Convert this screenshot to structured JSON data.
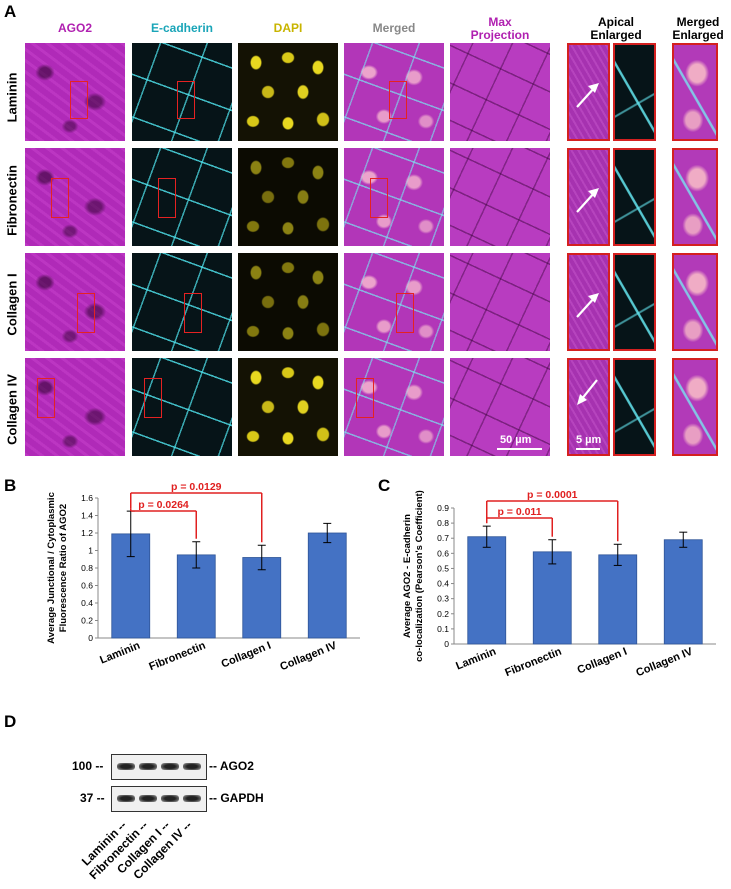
{
  "panels": {
    "A": "A",
    "B": "B",
    "C": "C",
    "D": "D"
  },
  "panel_a": {
    "columns": [
      {
        "label": "AGO2",
        "color": "#b020b0"
      },
      {
        "label": "E-cadherin",
        "color": "#1aa5b8"
      },
      {
        "label": "DAPI",
        "color": "#c8b400"
      },
      {
        "label": "Merged",
        "color": "#888888"
      },
      {
        "label": "Max Projection",
        "line1": "Max",
        "line2": "Projection",
        "color": "#b020b0"
      },
      {
        "label": "Apical Enlarged",
        "line1": "Apical",
        "line2": "Enlarged",
        "color": "#000000"
      },
      {
        "label": "Merged Enlarged",
        "line1": "Merged",
        "line2": "Enlarged",
        "color": "#000000"
      }
    ],
    "rows": [
      "Laminin",
      "Fibronectin",
      "Collagen I",
      "Collagen IV"
    ],
    "scale_bar_large": "50 µm",
    "scale_bar_small": "5 µm"
  },
  "chart_data": [
    {
      "type": "bar",
      "panel": "B",
      "categories": [
        "Laminin",
        "Fibronectin",
        "Collagen I",
        "Collagen IV"
      ],
      "values": [
        1.19,
        0.95,
        0.92,
        1.2
      ],
      "errors": [
        0.26,
        0.15,
        0.14,
        0.11
      ],
      "ylabel": "Average Junctional / Cytoplasmic Fluorescence Ratio of AGO2",
      "ylabel_line1": "Average Junctional / Cytoplasmic",
      "ylabel_line2": "Fluorescence Ratio of AGO2",
      "ylim": [
        0,
        1.6
      ],
      "yticks": [
        "0",
        "0.2",
        "0.4",
        "0.6",
        "0.8",
        "1",
        "1.2",
        "1.4",
        "1.6"
      ],
      "bar_color": "#4472c4",
      "annotations": [
        {
          "from": 0,
          "to": 1,
          "text": "p = 0.0264",
          "color": "#e02020"
        },
        {
          "from": 0,
          "to": 2,
          "text": "p = 0.0129",
          "color": "#e02020"
        }
      ]
    },
    {
      "type": "bar",
      "panel": "C",
      "categories": [
        "Laminin",
        "Fibronectin",
        "Collagen I",
        "Collagen IV"
      ],
      "values": [
        0.71,
        0.61,
        0.59,
        0.69
      ],
      "errors": [
        0.07,
        0.08,
        0.07,
        0.05
      ],
      "ylabel": "Average AGO2 - E-cadherin co-localization (Pearson's Coefficient)",
      "ylabel_line1": "Average AGO2 - E-cadherin",
      "ylabel_line2": "co-localization (Pearson's Coefficient)",
      "ylim": [
        0,
        0.9
      ],
      "yticks": [
        "0",
        "0.1",
        "0.2",
        "0.3",
        "0.4",
        "0.5",
        "0.6",
        "0.7",
        "0.8",
        "0.9"
      ],
      "bar_color": "#4472c4",
      "annotations": [
        {
          "from": 0,
          "to": 1,
          "text": "p = 0.011",
          "color": "#e02020"
        },
        {
          "from": 0,
          "to": 2,
          "text": "p = 0.0001",
          "color": "#e02020"
        }
      ]
    }
  ],
  "panel_d": {
    "blots": [
      {
        "mw": "100 --",
        "label": "-- AGO2"
      },
      {
        "mw": "37 --",
        "label": "-- GAPDH"
      }
    ],
    "lanes": [
      "Laminin --",
      "Fibronectin --",
      "Collagen I --",
      "Collagen IV --"
    ]
  }
}
